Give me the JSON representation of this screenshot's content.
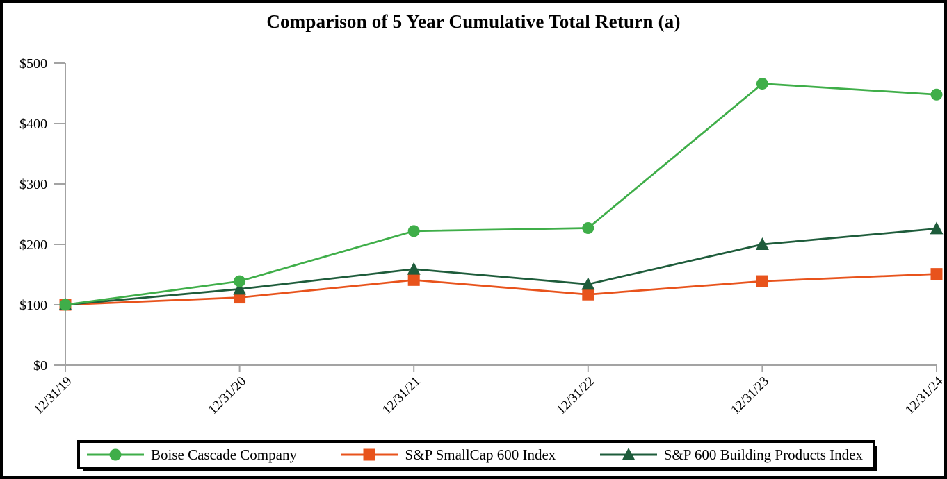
{
  "chart_data": {
    "type": "line",
    "title": "Comparison of 5 Year Cumulative Total Return (a)",
    "categories": [
      "12/31/19",
      "12/31/20",
      "12/31/21",
      "12/31/22",
      "12/31/23",
      "12/31/24"
    ],
    "series": [
      {
        "name": "Boise Cascade Company",
        "marker": "circle",
        "color": "#3FAE49",
        "values": [
          100,
          139,
          222,
          227,
          466,
          448
        ]
      },
      {
        "name": "S&P SmallCap 600 Index",
        "marker": "square",
        "color": "#E8531C",
        "values": [
          100,
          112,
          141,
          117,
          139,
          151
        ]
      },
      {
        "name": "S&P 600 Building Products Index",
        "marker": "triangle",
        "color": "#1E5C3B",
        "values": [
          100,
          126,
          159,
          134,
          200,
          226
        ]
      }
    ],
    "ylim": [
      0,
      500
    ],
    "y_ticks": [
      {
        "value": 0,
        "label": "$0"
      },
      {
        "value": 100,
        "label": "$100"
      },
      {
        "value": 200,
        "label": "$200"
      },
      {
        "value": 300,
        "label": "$300"
      },
      {
        "value": 400,
        "label": "$400"
      },
      {
        "value": 500,
        "label": "$500"
      }
    ],
    "axis_color": "#A3A3A3",
    "grid": false,
    "legend_position": "bottom"
  }
}
